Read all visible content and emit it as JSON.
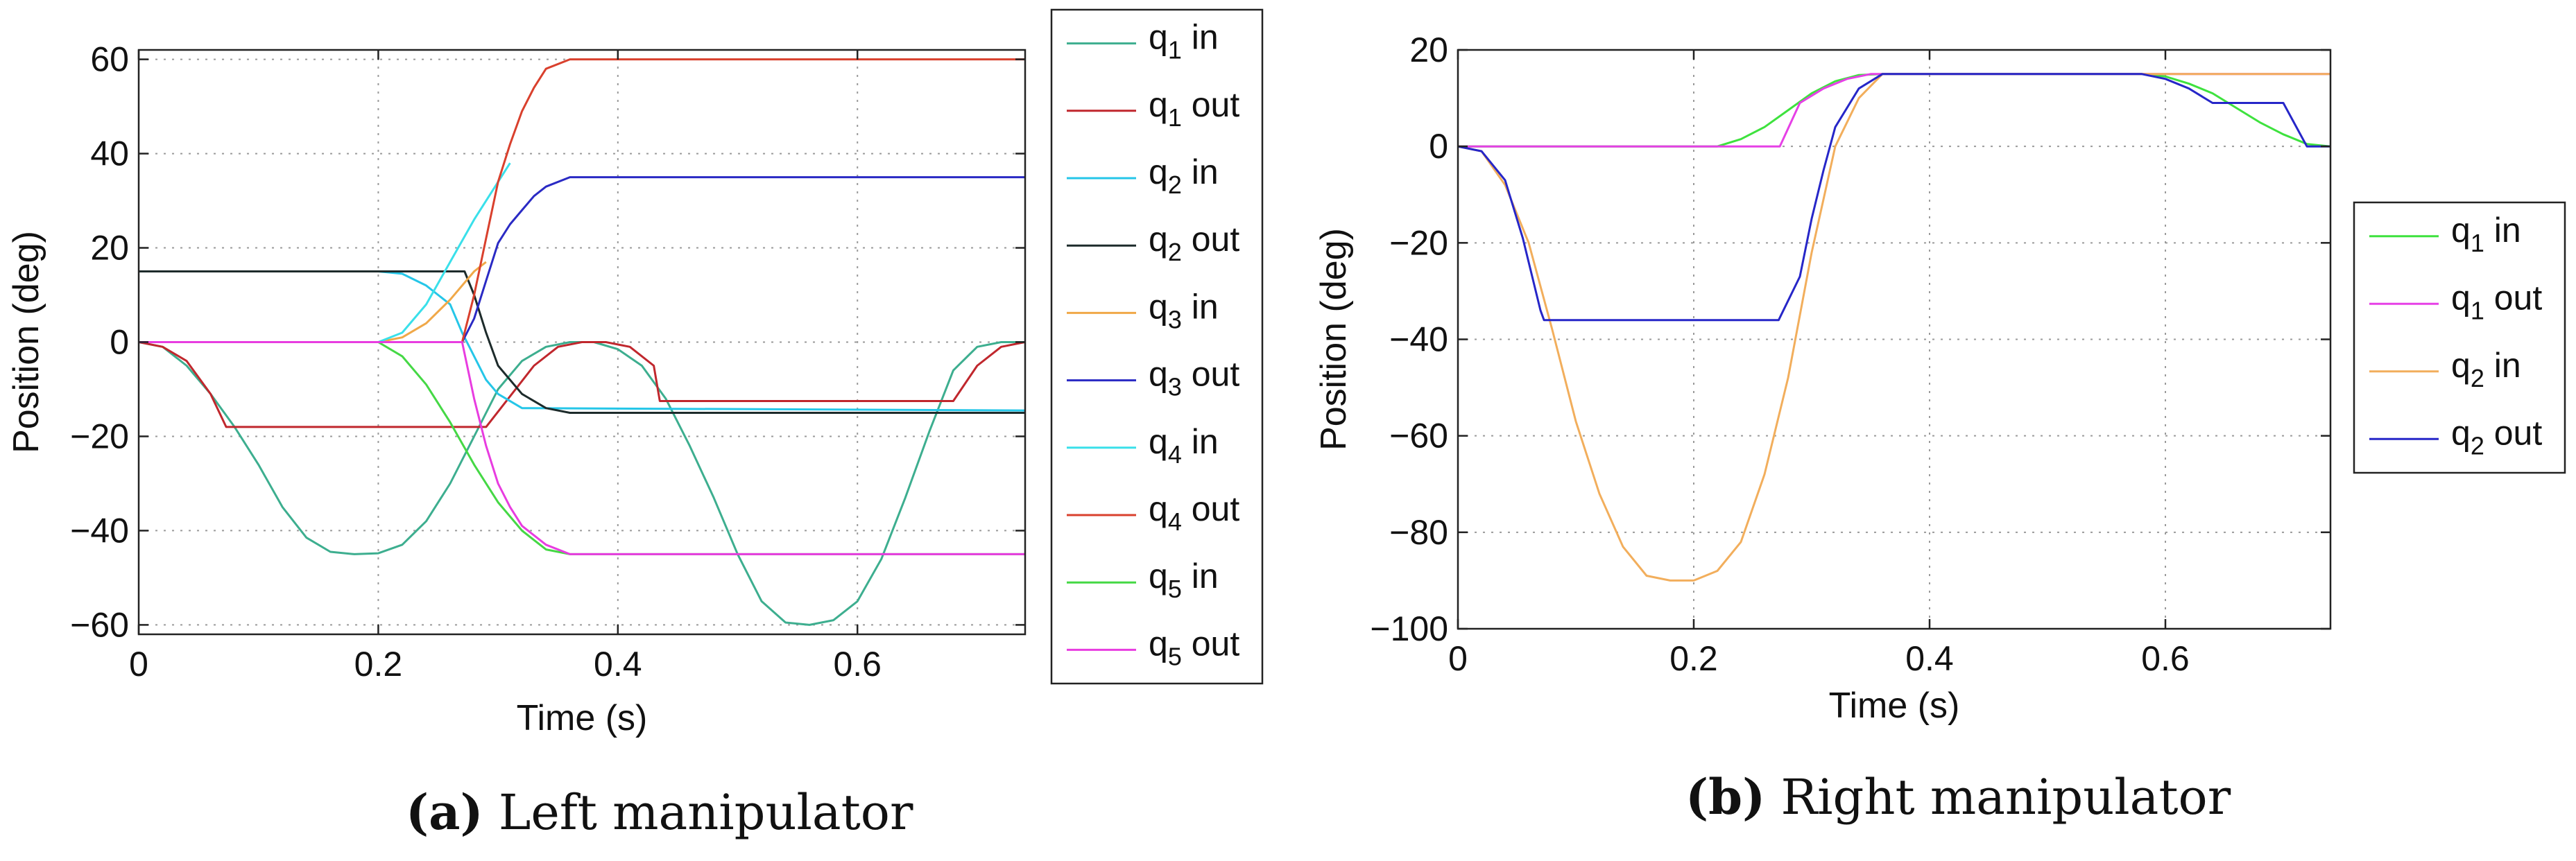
{
  "captions": [
    {
      "label": "(a)",
      "text": "Left manipulator"
    },
    {
      "label": "(b)",
      "text": "Right manipulator"
    }
  ],
  "chart_data": [
    {
      "type": "line",
      "title": "",
      "xlabel": "Time (s)",
      "ylabel": "Position (deg)",
      "xlim": [
        0,
        0.74
      ],
      "ylim": [
        -62,
        62
      ],
      "xticks": [
        0,
        0.2,
        0.4,
        0.6
      ],
      "xtick_labels": [
        "0",
        "0.2",
        "0.4",
        "0.6"
      ],
      "yticks": [
        -60,
        -40,
        -20,
        0,
        20,
        40,
        60
      ],
      "ytick_labels": [
        "−60",
        "−40",
        "−20",
        "0",
        "20",
        "40",
        "60"
      ],
      "grid": true,
      "legend_position": "outside-right",
      "series": [
        {
          "name": "q1 in",
          "sub": "1",
          "suffix": "in",
          "color": "#3dae8f",
          "x": [
            0,
            0.02,
            0.04,
            0.06,
            0.08,
            0.1,
            0.12,
            0.14,
            0.16,
            0.18,
            0.2,
            0.22,
            0.24,
            0.26,
            0.28,
            0.3,
            0.32,
            0.34,
            0.36,
            0.38,
            0.4,
            0.42,
            0.44,
            0.46,
            0.48,
            0.5,
            0.52,
            0.54,
            0.56,
            0.58,
            0.6,
            0.62,
            0.64,
            0.66,
            0.68,
            0.7,
            0.72,
            0.74
          ],
          "y": [
            0,
            -1,
            -5,
            -11,
            -18,
            -26,
            -35,
            -41.5,
            -44.5,
            -45,
            -44.8,
            -43,
            -38,
            -30,
            -20,
            -10,
            -4,
            -1,
            0,
            0,
            -1.5,
            -5,
            -12,
            -22,
            -33,
            -45,
            -55,
            -59.5,
            -60,
            -59,
            -55,
            -46,
            -33,
            -19,
            -6,
            -1,
            0,
            0
          ]
        },
        {
          "name": "q1 out",
          "sub": "1",
          "suffix": "out",
          "color": "#c0272d",
          "x": [
            0,
            0.02,
            0.04,
            0.06,
            0.073,
            0.29,
            0.33,
            0.35,
            0.37,
            0.39,
            0.41,
            0.43,
            0.435,
            0.68,
            0.7,
            0.72,
            0.74
          ],
          "y": [
            0,
            -1,
            -4,
            -11,
            -18,
            -18,
            -5,
            -1,
            0,
            0,
            -1,
            -5,
            -12.5,
            -12.5,
            -5,
            -1,
            0
          ]
        },
        {
          "name": "q2 in",
          "sub": "2",
          "suffix": "in",
          "color": "#25c6e8",
          "x": [
            0,
            0.2,
            0.22,
            0.24,
            0.26,
            0.27,
            0.28,
            0.29,
            0.3,
            0.32,
            0.74
          ],
          "y": [
            15,
            15,
            14.5,
            12,
            8,
            2,
            -3,
            -8,
            -11,
            -14,
            -14.5
          ]
        },
        {
          "name": "q2 out",
          "sub": "2",
          "suffix": "out",
          "color": "#1d2b2b",
          "x": [
            0,
            0.272,
            0.28,
            0.29,
            0.3,
            0.32,
            0.34,
            0.36,
            0.74
          ],
          "y": [
            15,
            15,
            10,
            2,
            -5,
            -11,
            -14,
            -15,
            -15
          ]
        },
        {
          "name": "q3 in",
          "sub": "3",
          "suffix": "in",
          "color": "#f0a848",
          "x": [
            0,
            0.2,
            0.22,
            0.24,
            0.26,
            0.28,
            0.29
          ],
          "y": [
            0,
            0,
            1,
            4,
            9,
            15,
            17
          ]
        },
        {
          "name": "q3 out",
          "sub": "3",
          "suffix": "out",
          "color": "#2a2ac4",
          "x": [
            0,
            0.27,
            0.28,
            0.29,
            0.3,
            0.31,
            0.32,
            0.33,
            0.34,
            0.36,
            0.74
          ],
          "y": [
            0,
            0,
            5,
            13,
            21,
            25,
            28,
            31,
            33,
            35,
            35
          ]
        },
        {
          "name": "q4 in",
          "sub": "4",
          "suffix": "in",
          "color": "#3ae0ea",
          "x": [
            0,
            0.2,
            0.22,
            0.24,
            0.26,
            0.28,
            0.3,
            0.31
          ],
          "y": [
            0,
            0,
            2,
            8,
            17,
            26,
            34,
            38
          ]
        },
        {
          "name": "q4 out",
          "sub": "4",
          "suffix": "out",
          "color": "#d9402d",
          "x": [
            0,
            0.27,
            0.28,
            0.29,
            0.3,
            0.31,
            0.32,
            0.33,
            0.34,
            0.36,
            0.74
          ],
          "y": [
            0,
            0,
            10,
            22,
            34,
            42,
            49,
            54,
            58,
            60,
            60
          ]
        },
        {
          "name": "q5 in",
          "sub": "5",
          "suffix": "in",
          "color": "#45d845",
          "x": [
            0,
            0.2,
            0.22,
            0.24,
            0.26,
            0.28,
            0.3,
            0.32,
            0.34,
            0.36,
            0.74
          ],
          "y": [
            0,
            0,
            -3,
            -9,
            -17,
            -26,
            -34,
            -40,
            -44,
            -45,
            -45
          ]
        },
        {
          "name": "q5 out",
          "sub": "5",
          "suffix": "out",
          "color": "#e83ce0",
          "x": [
            0,
            0.27,
            0.28,
            0.29,
            0.3,
            0.31,
            0.32,
            0.34,
            0.36,
            0.74
          ],
          "y": [
            0,
            0,
            -12,
            -22,
            -30,
            -35,
            -39,
            -43,
            -45,
            -45
          ]
        }
      ]
    },
    {
      "type": "line",
      "title": "",
      "xlabel": "Time (s)",
      "ylabel": "Position (deg)",
      "xlim": [
        0,
        0.74
      ],
      "ylim": [
        -100,
        20
      ],
      "xticks": [
        0,
        0.2,
        0.4,
        0.6
      ],
      "xtick_labels": [
        "0",
        "0.2",
        "0.4",
        "0.6"
      ],
      "yticks": [
        -100,
        -80,
        -60,
        -40,
        -20,
        0,
        20
      ],
      "ytick_labels": [
        "−100",
        "−80",
        "−60",
        "−40",
        "−20",
        "0",
        "20"
      ],
      "grid": true,
      "legend_position": "outside-right",
      "series": [
        {
          "name": "q1 in",
          "sub": "1",
          "suffix": "in",
          "color": "#3ee23e",
          "x": [
            0,
            0.2,
            0.22,
            0.24,
            0.26,
            0.28,
            0.3,
            0.32,
            0.34,
            0.36,
            0.58,
            0.6,
            0.62,
            0.64,
            0.66,
            0.68,
            0.7,
            0.72,
            0.74
          ],
          "y": [
            0,
            0,
            0,
            1.5,
            4,
            7.5,
            11,
            13.5,
            14.8,
            15,
            15,
            14.5,
            13,
            11,
            8,
            5,
            2.5,
            0.5,
            0
          ]
        },
        {
          "name": "q1 out",
          "sub": "1",
          "suffix": "out",
          "color": "#e640e6",
          "x": [
            0,
            0.273,
            0.29,
            0.31,
            0.33,
            0.35,
            0.74
          ],
          "y": [
            0,
            0,
            9,
            12,
            14,
            15,
            15
          ]
        },
        {
          "name": "q2 in",
          "sub": "2",
          "suffix": "in",
          "color": "#f2ae5c",
          "x": [
            0,
            0.02,
            0.04,
            0.06,
            0.08,
            0.1,
            0.12,
            0.14,
            0.16,
            0.18,
            0.2,
            0.22,
            0.24,
            0.26,
            0.28,
            0.3,
            0.32,
            0.34,
            0.36,
            0.74
          ],
          "y": [
            0,
            -1,
            -8,
            -20,
            -38,
            -57,
            -72,
            -83,
            -89,
            -90,
            -90,
            -88,
            -82,
            -68,
            -48,
            -22,
            0,
            10,
            15,
            15
          ]
        },
        {
          "name": "q2 out",
          "sub": "2",
          "suffix": "out",
          "color": "#2626c8",
          "x": [
            0,
            0.02,
            0.04,
            0.055,
            0.07,
            0.073,
            0.272,
            0.29,
            0.3,
            0.31,
            0.32,
            0.34,
            0.36,
            0.58,
            0.6,
            0.62,
            0.64,
            0.7,
            0.72,
            0.74
          ],
          "y": [
            0,
            -1,
            -7,
            -19,
            -34,
            -36,
            -36,
            -27,
            -15,
            -5,
            4,
            12,
            15,
            15,
            14,
            12,
            9,
            9,
            0,
            0
          ]
        }
      ]
    }
  ]
}
